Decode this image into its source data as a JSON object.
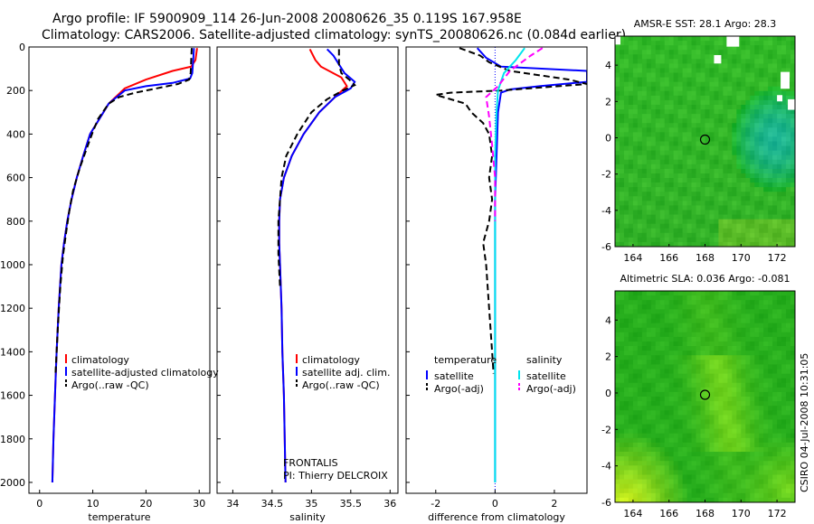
{
  "header": {
    "line1": "Argo profile: IF 5900909_114 26-Jun-2008 20080626_35 0.119S 167.958E",
    "line2": "Climatology: CARS2006. Satellite-adjusted climatology: synTS_20080626.nc (0.084d earlier)"
  },
  "side_label": "CSIRO 04-Jul-2008 10:31:05",
  "colors": {
    "red": "#ff0000",
    "blue": "#0000ff",
    "black": "#000000",
    "cyan": "#00e5ee",
    "magenta": "#ff00ff"
  },
  "chart_data": [
    {
      "type": "line",
      "id": "temperature",
      "xlabel": "temperature",
      "xlim": [
        -2,
        32
      ],
      "ylim": [
        2050,
        0
      ],
      "xticks": [
        0,
        10,
        20,
        30
      ],
      "yticks": [
        0,
        200,
        400,
        600,
        800,
        1000,
        1200,
        1400,
        1600,
        1800,
        2000
      ],
      "legend": [
        "climatology",
        "satellite-adjusted climatology",
        "Argo(..raw -QC)"
      ],
      "series": [
        {
          "name": "climatology",
          "color": "red",
          "dash": false,
          "points": [
            [
              29.6,
              5
            ],
            [
              29.3,
              60
            ],
            [
              28.5,
              90
            ],
            [
              25,
              110
            ],
            [
              20,
              150
            ],
            [
              16,
              190
            ],
            [
              13,
              260
            ],
            [
              11,
              340
            ],
            [
              9.5,
              400
            ],
            [
              8.2,
              500
            ],
            [
              7,
              600
            ],
            [
              6,
              700
            ],
            [
              5.2,
              800
            ],
            [
              4.6,
              900
            ],
            [
              4.1,
              1000
            ],
            [
              3.6,
              1200
            ],
            [
              3.2,
              1400
            ],
            [
              2.9,
              1600
            ],
            [
              2.6,
              1800
            ],
            [
              2.4,
              2000
            ]
          ]
        },
        {
          "name": "satellite-adjusted climatology",
          "color": "blue",
          "dash": false,
          "points": [
            [
              29.0,
              5
            ],
            [
              28.9,
              50
            ],
            [
              28.7,
              120
            ],
            [
              28.3,
              145
            ],
            [
              25,
              165
            ],
            [
              20,
              180
            ],
            [
              16,
              200
            ],
            [
              13,
              260
            ],
            [
              11,
              340
            ],
            [
              9.5,
              400
            ],
            [
              8.2,
              500
            ],
            [
              7,
              600
            ],
            [
              6,
              700
            ],
            [
              5.2,
              800
            ],
            [
              4.6,
              900
            ],
            [
              4.1,
              1000
            ],
            [
              3.6,
              1200
            ],
            [
              3.2,
              1400
            ],
            [
              2.9,
              1600
            ],
            [
              2.6,
              1800
            ],
            [
              2.4,
              2000
            ]
          ]
        },
        {
          "name": "Argo(..raw -QC)",
          "color": "black",
          "dash": true,
          "points": [
            [
              28.6,
              5
            ],
            [
              28.5,
              60
            ],
            [
              28.4,
              120
            ],
            [
              28.1,
              150
            ],
            [
              26,
              170
            ],
            [
              22,
              190
            ],
            [
              18,
              210
            ],
            [
              15,
              230
            ],
            [
              13,
              260
            ],
            [
              11,
              330
            ],
            [
              10,
              390
            ],
            [
              8.8,
              470
            ],
            [
              7.5,
              560
            ],
            [
              6.3,
              660
            ],
            [
              5.6,
              750
            ],
            [
              5.0,
              850
            ],
            [
              4.4,
              960
            ],
            [
              3.9,
              1100
            ],
            [
              3.4,
              1300
            ],
            [
              3.0,
              1500
            ]
          ]
        }
      ]
    },
    {
      "type": "line",
      "id": "salinity",
      "xlabel": "salinity",
      "xlim": [
        33.8,
        36.1
      ],
      "ylim": [
        2050,
        0
      ],
      "xticks": [
        34,
        34.5,
        35,
        35.5,
        36
      ],
      "yticks": [
        0,
        200,
        400,
        600,
        800,
        1000,
        1200,
        1400,
        1600,
        1800,
        2000
      ],
      "legend": [
        "climatology",
        "satellite adj. clim.",
        "Argo(..raw -QC)"
      ],
      "annotation": [
        "FRONTALIS",
        "PI: Thierry DELCROIX"
      ],
      "series": [
        {
          "name": "climatology",
          "color": "red",
          "dash": false,
          "points": [
            [
              34.98,
              10
            ],
            [
              35.05,
              60
            ],
            [
              35.12,
              90
            ],
            [
              35.38,
              140
            ],
            [
              35.45,
              180
            ],
            [
              35.3,
              230
            ],
            [
              35.1,
              300
            ],
            [
              34.9,
              400
            ],
            [
              34.75,
              500
            ],
            [
              34.65,
              600
            ],
            [
              34.6,
              700
            ],
            [
              34.59,
              800
            ],
            [
              34.59,
              900
            ],
            [
              34.6,
              1000
            ],
            [
              34.62,
              1200
            ],
            [
              34.63,
              1400
            ],
            [
              34.65,
              1600
            ],
            [
              34.66,
              1800
            ],
            [
              34.67,
              2000
            ]
          ]
        },
        {
          "name": "satellite adj. clim.",
          "color": "blue",
          "dash": false,
          "points": [
            [
              35.2,
              10
            ],
            [
              35.28,
              40
            ],
            [
              35.35,
              80
            ],
            [
              35.42,
              120
            ],
            [
              35.55,
              160
            ],
            [
              35.5,
              190
            ],
            [
              35.3,
              230
            ],
            [
              35.1,
              300
            ],
            [
              34.9,
              400
            ],
            [
              34.75,
              500
            ],
            [
              34.65,
              600
            ],
            [
              34.6,
              700
            ],
            [
              34.59,
              800
            ],
            [
              34.59,
              900
            ],
            [
              34.6,
              1000
            ],
            [
              34.62,
              1200
            ],
            [
              34.63,
              1400
            ],
            [
              34.65,
              1600
            ],
            [
              34.66,
              1800
            ],
            [
              34.67,
              2000
            ]
          ]
        },
        {
          "name": "Argo(..raw -QC)",
          "color": "black",
          "dash": true,
          "points": [
            [
              35.35,
              10
            ],
            [
              35.35,
              80
            ],
            [
              35.38,
              120
            ],
            [
              35.48,
              150
            ],
            [
              35.55,
              175
            ],
            [
              35.4,
              200
            ],
            [
              35.2,
              240
            ],
            [
              35.0,
              300
            ],
            [
              34.82,
              400
            ],
            [
              34.68,
              500
            ],
            [
              34.62,
              600
            ],
            [
              34.6,
              700
            ],
            [
              34.58,
              800
            ],
            [
              34.58,
              950
            ],
            [
              34.6,
              1100
            ]
          ]
        }
      ]
    },
    {
      "type": "line",
      "id": "difference",
      "xlabel": "difference from climatology",
      "xlim": [
        -3.0,
        3.1
      ],
      "ylim": [
        2050,
        0
      ],
      "xticks": [
        -2,
        0,
        2
      ],
      "yticks": [
        0,
        200,
        400,
        600,
        800,
        1000,
        1200,
        1400,
        1600,
        1800,
        2000
      ],
      "legend_titles": [
        "temperature",
        "salinity"
      ],
      "legend": [
        "satellite",
        "Argo(-adj)",
        "satellite",
        "Argo(-adj)"
      ],
      "series": [
        {
          "name": "temperature satellite",
          "color": "blue",
          "dash": false,
          "points": [
            [
              -0.6,
              5
            ],
            [
              -0.3,
              50
            ],
            [
              0.2,
              90
            ],
            [
              3.1,
              110
            ],
            [
              3.1,
              160
            ],
            [
              1.5,
              180
            ],
            [
              0.5,
              195
            ],
            [
              0.2,
              210
            ],
            [
              0.1,
              300
            ],
            [
              0.05,
              500
            ],
            [
              0,
              700
            ],
            [
              0,
              1000
            ],
            [
              0,
              1500
            ],
            [
              0,
              2000
            ]
          ]
        },
        {
          "name": "temperature Argo(-adj)",
          "color": "black",
          "dash": true,
          "points": [
            [
              -1.2,
              5
            ],
            [
              -0.5,
              40
            ],
            [
              -0.2,
              70
            ],
            [
              0.5,
              110
            ],
            [
              2.5,
              150
            ],
            [
              3.1,
              170
            ],
            [
              0.2,
              200
            ],
            [
              -1.5,
              210
            ],
            [
              -2.0,
              220
            ],
            [
              -1.0,
              260
            ],
            [
              -0.8,
              300
            ],
            [
              -0.4,
              350
            ],
            [
              -0.2,
              400
            ],
            [
              -0.1,
              500
            ],
            [
              -0.2,
              600
            ],
            [
              -0.1,
              700
            ],
            [
              -0.2,
              800
            ],
            [
              -0.4,
              900
            ],
            [
              -0.3,
              1000
            ],
            [
              -0.2,
              1200
            ],
            [
              -0.1,
              1400
            ],
            [
              -0.05,
              1500
            ]
          ]
        },
        {
          "name": "salinity satellite",
          "color": "cyan",
          "dash": false,
          "points": [
            [
              1.0,
              5
            ],
            [
              0.7,
              60
            ],
            [
              0.3,
              120
            ],
            [
              0.1,
              200
            ],
            [
              0.05,
              300
            ],
            [
              0,
              500
            ],
            [
              0,
              700
            ],
            [
              0,
              1000
            ],
            [
              0,
              1500
            ],
            [
              0,
              2000
            ]
          ]
        },
        {
          "name": "salinity Argo(-adj)",
          "color": "magenta",
          "dash": true,
          "points": [
            [
              1.6,
              5
            ],
            [
              1.2,
              40
            ],
            [
              0.5,
              110
            ],
            [
              0.1,
              180
            ],
            [
              -0.3,
              230
            ],
            [
              -0.2,
              320
            ],
            [
              -0.1,
              450
            ],
            [
              0,
              600
            ],
            [
              0,
              800
            ]
          ]
        }
      ]
    },
    {
      "type": "heatmap",
      "id": "sst",
      "title": "AMSR-E SST: 28.1 Argo: 28.3",
      "xlim": [
        163,
        173
      ],
      "ylim": [
        -6,
        5.6
      ],
      "xticks": [
        164,
        166,
        168,
        170,
        172
      ],
      "yticks": [
        -6,
        -4,
        -2,
        0,
        2,
        4
      ],
      "marker": [
        168,
        -0.1
      ]
    },
    {
      "type": "heatmap",
      "id": "sla",
      "title": "Altimetric SLA: 0.036 Argo: -0.081",
      "xlim": [
        163,
        173
      ],
      "ylim": [
        -6,
        5.6
      ],
      "xticks": [
        164,
        166,
        168,
        170,
        172
      ],
      "yticks": [
        -6,
        -4,
        -2,
        0,
        2,
        4
      ],
      "marker": [
        168,
        -0.1
      ]
    }
  ]
}
